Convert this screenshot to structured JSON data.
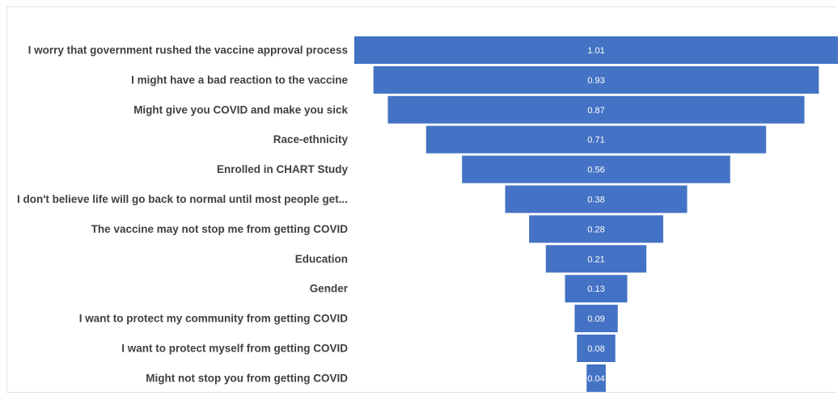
{
  "chart_data": {
    "type": "bar",
    "subtype": "funnel",
    "title": "",
    "xlabel": "",
    "ylabel": "",
    "categories": [
      "I worry that government rushed the vaccine approval process",
      "I might have a bad reaction to the vaccine",
      "Might give you COVID and make you sick",
      "Race-ethnicity",
      "Enrolled in CHART Study",
      "I don't believe life will go back to normal until most people get...",
      "The vaccine may not stop me from getting COVID",
      "Education",
      "Gender",
      "I want to protect my community from getting COVID",
      "I want to protect myself from getting COVID",
      "Might not stop you from getting COVID"
    ],
    "values": [
      1.01,
      0.93,
      0.87,
      0.71,
      0.56,
      0.38,
      0.28,
      0.21,
      0.13,
      0.09,
      0.08,
      0.04
    ],
    "value_labels": [
      "1.01",
      "0.93",
      "0.87",
      "0.71",
      "0.56",
      "0.38",
      "0.28",
      "0.21",
      "0.13",
      "0.09",
      "0.08",
      "0.04"
    ],
    "bar_color": "#4472C4",
    "label_color": "#404040",
    "value_label_color": "#FFFFFF",
    "grid": false,
    "legend": "none"
  }
}
